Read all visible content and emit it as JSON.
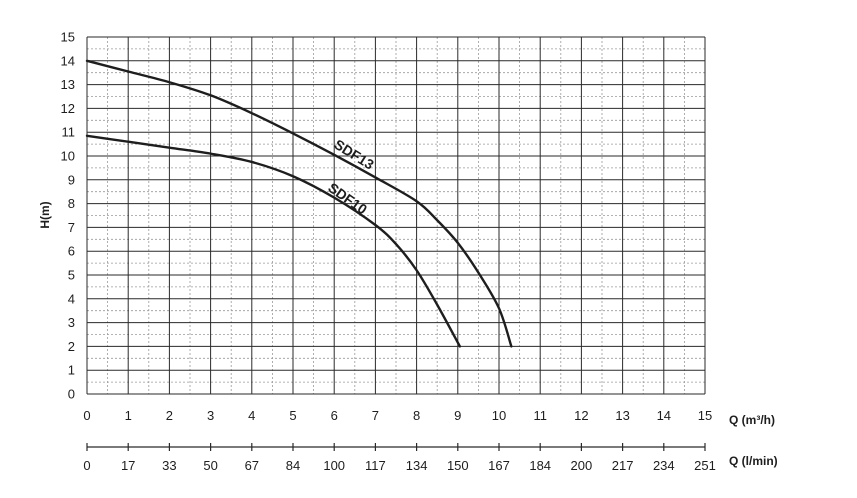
{
  "chart_data": {
    "type": "line",
    "title": "",
    "ylabel": "H(m)",
    "xlabel": "Q (m³/h)",
    "xlabel_secondary": "Q (l/min)",
    "xlim": [
      0,
      15
    ],
    "ylim": [
      0,
      15
    ],
    "x_ticks": [
      "0",
      "1",
      "2",
      "3",
      "4",
      "5",
      "6",
      "7",
      "8",
      "9",
      "10",
      "11",
      "12",
      "13",
      "14",
      "15"
    ],
    "y_ticks": [
      "0",
      "1",
      "2",
      "3",
      "4",
      "5",
      "6",
      "7",
      "8",
      "9",
      "10",
      "11",
      "12",
      "13",
      "14",
      "15"
    ],
    "x_ticks_secondary": [
      "0",
      "17",
      "33",
      "50",
      "67",
      "84",
      "100",
      "117",
      "134",
      "150",
      "167",
      "184",
      "200",
      "217",
      "234",
      "251"
    ],
    "grid": true,
    "minor_grid": true,
    "legend": "none",
    "series": [
      {
        "name": "SDF13",
        "x": [
          0,
          1,
          2,
          3,
          4,
          5,
          6,
          7,
          8,
          8.5,
          9,
          9.5,
          10,
          10.3
        ],
        "y": [
          14.0,
          13.55,
          13.1,
          12.55,
          11.8,
          10.95,
          10.05,
          9.1,
          8.1,
          7.3,
          6.35,
          5.1,
          3.6,
          2.0
        ]
      },
      {
        "name": "SDF10",
        "x": [
          0,
          1,
          2,
          3,
          4,
          5,
          6,
          7,
          7.5,
          8,
          8.5,
          9.05
        ],
        "y": [
          10.85,
          10.6,
          10.35,
          10.1,
          9.75,
          9.15,
          8.25,
          7.1,
          6.3,
          5.2,
          3.75,
          2.0
        ]
      }
    ],
    "curve_labels": [
      "SDF13",
      "SDF10"
    ],
    "colors": {
      "major_grid": "#2a2a2a",
      "minor_grid": "#9a9a9a",
      "curve": "#1e1e1e",
      "text": "#1e1e1e"
    }
  }
}
